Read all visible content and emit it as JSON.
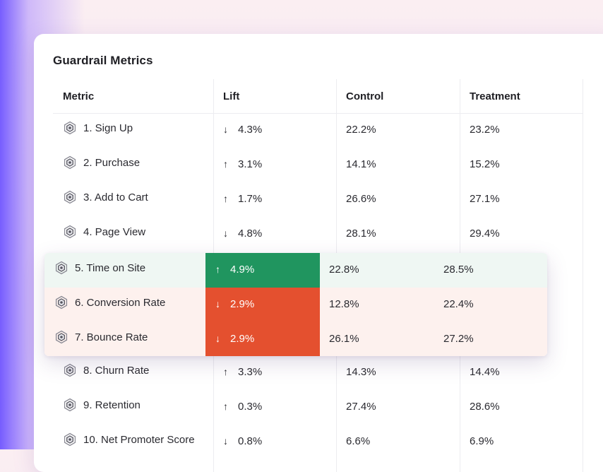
{
  "card": {
    "title": "Guardrail Metrics"
  },
  "columns": {
    "metric": "Metric",
    "lift": "Lift",
    "control": "Control",
    "treatment": "Treatment"
  },
  "colors": {
    "positive": "#20955f",
    "negative": "#e4502f",
    "accent": "#7b5cff"
  },
  "rows": [
    {
      "metric": "1. Sign Up",
      "direction": "down",
      "arrow": "↓",
      "lift": "4.3%",
      "control": "22.2%",
      "treatment": "23.2%"
    },
    {
      "metric": "2. Purchase",
      "direction": "up",
      "arrow": "↑",
      "lift": "3.1%",
      "control": "14.1%",
      "treatment": "15.2%"
    },
    {
      "metric": "3. Add to Cart",
      "direction": "up",
      "arrow": "↑",
      "lift": "1.7%",
      "control": "26.6%",
      "treatment": "27.1%"
    },
    {
      "metric": "4. Page View",
      "direction": "down",
      "arrow": "↓",
      "lift": "4.8%",
      "control": "28.1%",
      "treatment": "29.4%"
    },
    {
      "metric": "5. Time on Site",
      "direction": "up",
      "arrow": "↑",
      "lift": "4.9%",
      "control": "22.8%",
      "treatment": "28.5%"
    },
    {
      "metric": "6. Conversion Rate",
      "direction": "down",
      "arrow": "↓",
      "lift": "2.9%",
      "control": "12.8%",
      "treatment": "22.4%"
    },
    {
      "metric": "7. Bounce Rate",
      "direction": "down",
      "arrow": "↓",
      "lift": "2.9%",
      "control": "26.1%",
      "treatment": "27.2%"
    },
    {
      "metric": "8. Churn Rate",
      "direction": "up",
      "arrow": "↑",
      "lift": "3.3%",
      "control": "14.3%",
      "treatment": "14.4%"
    },
    {
      "metric": "9. Retention",
      "direction": "up",
      "arrow": "↑",
      "lift": "0.3%",
      "control": "27.4%",
      "treatment": "28.6%"
    },
    {
      "metric": "10. Net Promoter Score",
      "direction": "down",
      "arrow": "↓",
      "lift": "0.8%",
      "control": "6.6%",
      "treatment": "6.9%"
    }
  ]
}
